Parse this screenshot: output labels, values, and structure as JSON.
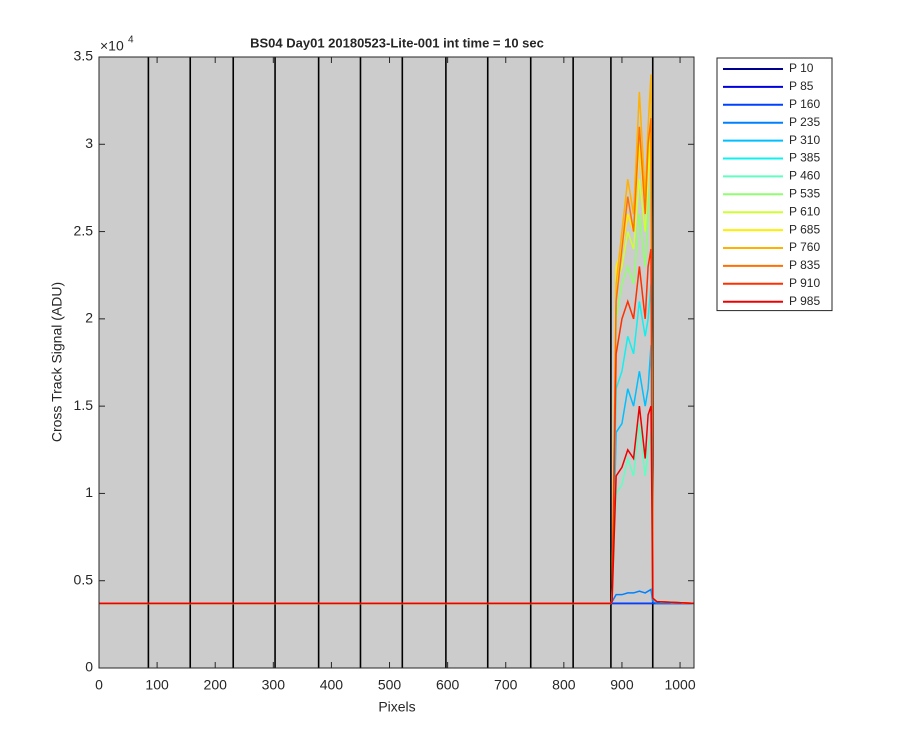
{
  "chart_data": {
    "type": "line",
    "title": "BS04 Day01 20180523-Lite-001 int time = 10 sec",
    "x_label": "Pixels",
    "y_label": "Cross Track Signal (ADU)",
    "y_scale_base": "×10",
    "y_scale_power": "4",
    "xlim": [
      0,
      1024
    ],
    "xticks": [
      0,
      100,
      200,
      300,
      400,
      500,
      600,
      700,
      800,
      900,
      1000
    ],
    "ylim": [
      0,
      3.5
    ],
    "yticks": [
      0,
      0.5,
      1,
      1.5,
      2,
      2.5,
      3,
      3.5
    ],
    "background": "#cccccc",
    "legend": "outside-right",
    "vlines": [
      85,
      157,
      231,
      303,
      378,
      450,
      522,
      597,
      669,
      743,
      816,
      881,
      953
    ],
    "x": [
      0,
      880,
      883,
      890,
      900,
      910,
      920,
      930,
      940,
      945,
      950,
      953,
      960,
      1024
    ],
    "series": [
      {
        "name": "P 10",
        "color": "#00008f",
        "values": [
          0.37,
          0.37,
          0.37,
          0.37,
          0.37,
          0.37,
          0.37,
          0.37,
          0.37,
          0.37,
          0.37,
          0.37,
          0.37,
          0.37
        ]
      },
      {
        "name": "P 85",
        "color": "#0000df",
        "values": [
          0.37,
          0.37,
          0.37,
          0.37,
          0.37,
          0.37,
          0.37,
          0.37,
          0.37,
          0.37,
          0.37,
          0.37,
          0.37,
          0.37
        ]
      },
      {
        "name": "P 160",
        "color": "#0040ff",
        "values": [
          0.37,
          0.37,
          0.37,
          0.37,
          0.37,
          0.37,
          0.37,
          0.37,
          0.37,
          0.37,
          0.37,
          0.37,
          0.37,
          0.37
        ]
      },
      {
        "name": "P 235",
        "color": "#0080ff",
        "values": [
          0.37,
          0.37,
          0.38,
          0.42,
          0.42,
          0.43,
          0.43,
          0.44,
          0.43,
          0.44,
          0.45,
          0.38,
          0.37,
          0.37
        ]
      },
      {
        "name": "P 310",
        "color": "#00bfff",
        "values": [
          0.37,
          0.37,
          0.38,
          1.35,
          1.4,
          1.6,
          1.5,
          1.7,
          1.5,
          1.6,
          1.85,
          0.4,
          0.38,
          0.37
        ]
      },
      {
        "name": "P 385",
        "color": "#10f0ef",
        "values": [
          0.37,
          0.37,
          0.38,
          1.6,
          1.7,
          1.9,
          1.8,
          2.1,
          1.9,
          2.0,
          2.2,
          0.4,
          0.38,
          0.37
        ]
      },
      {
        "name": "P 460",
        "color": "#60ffc0",
        "values": [
          0.37,
          0.37,
          0.38,
          1.0,
          1.05,
          1.2,
          1.1,
          1.4,
          1.1,
          1.25,
          1.35,
          0.4,
          0.38,
          0.37
        ]
      },
      {
        "name": "P 535",
        "color": "#8fff70",
        "values": [
          0.37,
          0.37,
          0.38,
          2.0,
          2.2,
          2.3,
          2.2,
          2.6,
          2.3,
          2.6,
          2.8,
          0.4,
          0.38,
          0.37
        ]
      },
      {
        "name": "P 610",
        "color": "#cfff30",
        "values": [
          0.37,
          0.37,
          0.38,
          2.2,
          2.3,
          2.5,
          2.4,
          2.8,
          2.5,
          2.8,
          3.0,
          0.4,
          0.38,
          0.37
        ]
      },
      {
        "name": "P 685",
        "color": "#ffef00",
        "values": [
          0.37,
          0.37,
          0.38,
          2.3,
          2.4,
          2.6,
          2.5,
          3.0,
          2.6,
          2.9,
          3.1,
          0.4,
          0.38,
          0.37
        ]
      },
      {
        "name": "P 760",
        "color": "#ffb000",
        "values": [
          0.37,
          0.37,
          0.38,
          2.2,
          2.5,
          2.8,
          2.6,
          3.3,
          2.7,
          3.1,
          3.4,
          0.4,
          0.38,
          0.37
        ]
      },
      {
        "name": "P 835",
        "color": "#ff7000",
        "values": [
          0.37,
          0.37,
          0.38,
          2.1,
          2.4,
          2.7,
          2.5,
          3.1,
          2.6,
          3.0,
          3.15,
          0.4,
          0.38,
          0.37
        ]
      },
      {
        "name": "P 910",
        "color": "#ff3000",
        "values": [
          0.37,
          0.37,
          0.38,
          1.8,
          2.0,
          2.1,
          2.0,
          2.3,
          2.0,
          2.3,
          2.4,
          0.4,
          0.38,
          0.37
        ]
      },
      {
        "name": "P 985",
        "color": "#ef0000",
        "values": [
          0.37,
          0.37,
          0.38,
          1.1,
          1.15,
          1.25,
          1.2,
          1.5,
          1.2,
          1.45,
          1.5,
          0.4,
          0.38,
          0.37
        ]
      }
    ]
  }
}
